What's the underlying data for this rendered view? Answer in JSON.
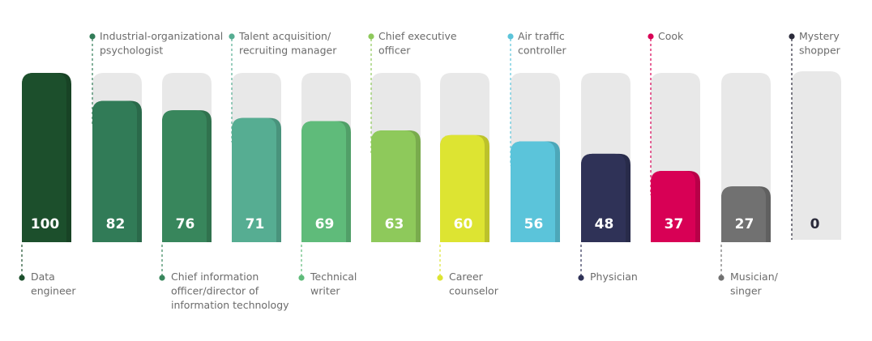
{
  "chart_data": {
    "type": "bar",
    "title": "",
    "xlabel": "",
    "ylabel": "",
    "ylim": [
      0,
      100
    ],
    "grid": false,
    "categories": [
      [
        "Data",
        "engineer"
      ],
      [
        "Industrial-organizational",
        "psychologist"
      ],
      [
        "Chief information",
        "officer/director of",
        "information technology"
      ],
      [
        "Talent acquisition/",
        "recruiting manager"
      ],
      [
        "Technical",
        "writer"
      ],
      [
        "Chief executive",
        "officer"
      ],
      [
        "Career",
        "counselor"
      ],
      [
        "Air traffic",
        "controller"
      ],
      [
        "Physician"
      ],
      [
        "Cook"
      ],
      [
        "Musician/",
        "singer"
      ],
      [
        "Mystery",
        "shopper"
      ]
    ],
    "values": [
      100,
      82,
      76,
      71,
      69,
      63,
      60,
      56,
      48,
      37,
      27,
      0
    ],
    "value_labels": [
      "100",
      "82",
      "76",
      "71",
      "69",
      "63",
      "60",
      "56",
      "48",
      "37",
      "27",
      "0"
    ],
    "colors": [
      "#1c4f2c",
      "#317b57",
      "#38865c",
      "#56ad92",
      "#5fbb7a",
      "#8ec95b",
      "#dde432",
      "#5bc4da",
      "#2f3257",
      "#d80055",
      "#717171",
      "#2a2a3a"
    ],
    "label_positions": [
      "bottom",
      "top",
      "bottom",
      "top",
      "bottom",
      "top",
      "bottom",
      "top",
      "bottom",
      "top",
      "bottom",
      "top"
    ]
  }
}
